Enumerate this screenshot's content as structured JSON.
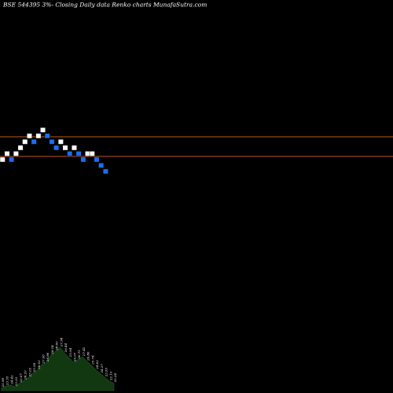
{
  "chart_data": {
    "type": "renko",
    "title": "BSE 544395 3%- Closing Daily data Renko charts MunafaSutra.com",
    "colors": {
      "background": "#000000",
      "up_brick": "#ffffff",
      "down_brick": "#1a6ff0",
      "level_line": "#c0591c",
      "volume_fill": "#123812"
    },
    "horizontal_levels": [
      26.49,
      25.06
    ],
    "bricks": [
      {
        "dir": "up",
        "value": 25.06
      },
      {
        "dir": "up",
        "value": 25.49
      },
      {
        "dir": "down",
        "value": 25.06
      },
      {
        "dir": "up",
        "value": 25.49
      },
      {
        "dir": "up",
        "value": 25.92
      },
      {
        "dir": "up",
        "value": 26.35
      },
      {
        "dir": "up",
        "value": 26.78
      },
      {
        "dir": "down",
        "value": 26.35
      },
      {
        "dir": "up",
        "value": 26.78
      },
      {
        "dir": "up",
        "value": 27.21
      },
      {
        "dir": "down",
        "value": 26.78
      },
      {
        "dir": "down",
        "value": 26.35
      },
      {
        "dir": "down",
        "value": 25.92
      },
      {
        "dir": "up",
        "value": 26.35
      },
      {
        "dir": "up",
        "value": 25.92
      },
      {
        "dir": "down",
        "value": 25.49
      },
      {
        "dir": "up",
        "value": 25.92
      },
      {
        "dir": "down",
        "value": 25.49
      },
      {
        "dir": "down",
        "value": 25.06
      },
      {
        "dir": "up",
        "value": 25.49
      },
      {
        "dir": "up",
        "value": 25.49
      },
      {
        "dir": "down",
        "value": 25.06
      },
      {
        "dir": "down",
        "value": 24.63
      },
      {
        "dir": "down",
        "value": 24.2
      }
    ],
    "volume_labels": [
      "23.98",
      "23.55",
      "24.42",
      "23.33",
      "23.67",
      "24.20",
      "25.02",
      "25.58",
      "26.02",
      "27.00",
      "26.86",
      "28.14",
      "28.60",
      "27.94",
      "26.44",
      "25.94",
      "26.07",
      "26.11",
      "27.42",
      "26.86",
      "25.74",
      "24.63",
      "24.37",
      "23.93",
      "22.10",
      "23.24"
    ],
    "volume_values": [
      3,
      5,
      6,
      4,
      8,
      11,
      14,
      19,
      22,
      28,
      30,
      38,
      42,
      46,
      40,
      35,
      30,
      33,
      36,
      31,
      27,
      22,
      18,
      14,
      10,
      8
    ]
  }
}
